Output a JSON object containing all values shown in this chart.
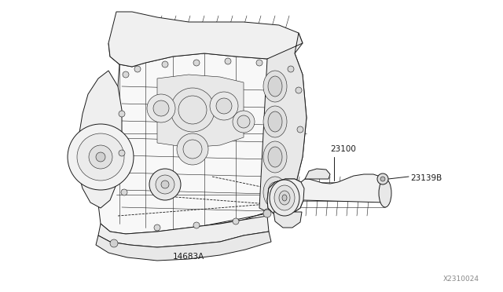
{
  "background_color": "#ffffff",
  "line_color": "#1a1a1a",
  "text_color": "#1a1a1a",
  "diagram_id": "X2310024",
  "label_23100": "23100",
  "label_23139B": "23139B",
  "label_14683A": "14683A",
  "figsize": [
    6.4,
    3.72
  ],
  "dpi": 100,
  "engine_color": "#f5f5f5",
  "alt_color": "#f0f0f0"
}
